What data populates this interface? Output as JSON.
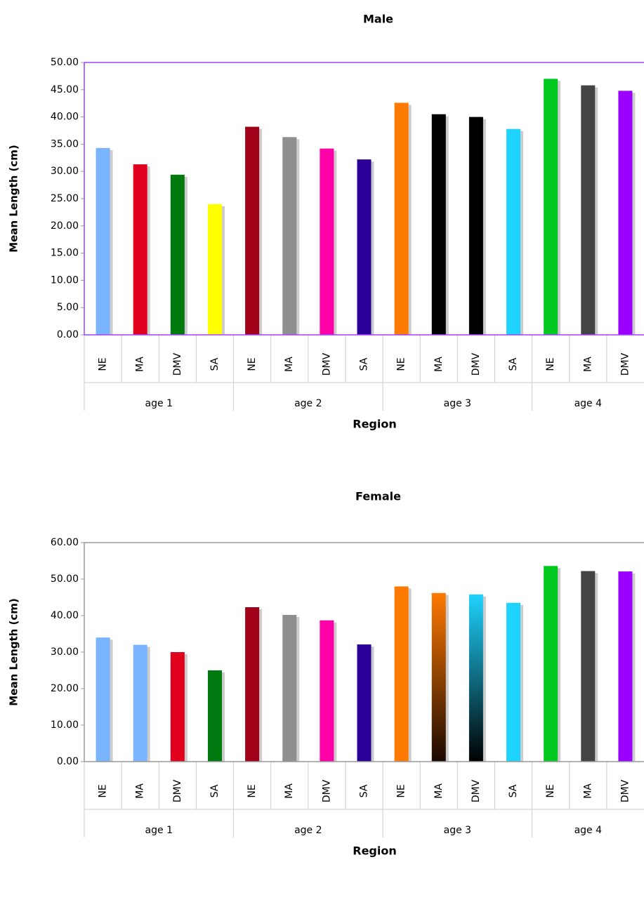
{
  "chart_data": [
    {
      "type": "bar",
      "title": "Male",
      "x_label": "Region",
      "y_label": "Mean Length (cm)",
      "groups": [
        {
          "name": "age 1",
          "categories": [
            "NE",
            "MA",
            "DMV",
            "SA"
          ]
        },
        {
          "name": "age 2",
          "categories": [
            "NE",
            "MA",
            "DMV",
            "SA"
          ]
        },
        {
          "name": "age 3",
          "categories": [
            "NE",
            "MA",
            "DMV",
            "SA"
          ]
        },
        {
          "name": "age 4",
          "categories": [
            "NE",
            "MA",
            "DMV"
          ]
        }
      ],
      "values": [
        34.3,
        31.3,
        29.4,
        24.0,
        38.2,
        36.3,
        34.2,
        32.2,
        42.6,
        40.5,
        40.0,
        37.8,
        47.0,
        45.8,
        44.8
      ],
      "colors": [
        "#7ab4ff",
        "#e0001e",
        "#007a0f",
        "#ffff00",
        "#a00018",
        "#8f8f8f",
        "#ff00a8",
        "#2a0099",
        "#ff7a00",
        "#000000",
        "#000000",
        "#1fd3ff",
        "#00c81e",
        "#444444",
        "#9a00ff"
      ],
      "ylim": [
        0,
        50
      ],
      "yticks": [
        {
          "value": 0,
          "label": "0.00"
        },
        {
          "value": 5,
          "label": "5.00"
        },
        {
          "value": 10,
          "label": "10.00"
        },
        {
          "value": 15,
          "label": "15.00"
        },
        {
          "value": 20,
          "label": "20.00"
        },
        {
          "value": 25,
          "label": "25.00"
        },
        {
          "value": 30,
          "label": "30.00"
        },
        {
          "value": 35,
          "label": "35.00"
        },
        {
          "value": 40,
          "label": "40.00"
        },
        {
          "value": 45,
          "label": "45.00"
        },
        {
          "value": 50,
          "label": "50.00"
        }
      ],
      "frame_color": "#a040ff"
    },
    {
      "type": "bar",
      "title": "Female",
      "x_label": "Region",
      "y_label": "Mean Length (cm)",
      "groups": [
        {
          "name": "age 1",
          "categories": [
            "NE",
            "MA",
            "DMV",
            "SA"
          ]
        },
        {
          "name": "age 2",
          "categories": [
            "NE",
            "MA",
            "DMV",
            "SA"
          ]
        },
        {
          "name": "age 3",
          "categories": [
            "NE",
            "MA",
            "DMV",
            "SA"
          ]
        },
        {
          "name": "age 4",
          "categories": [
            "NE",
            "MA",
            "DMV"
          ]
        }
      ],
      "values": [
        34.0,
        32.0,
        30.0,
        25.0,
        42.3,
        40.2,
        38.7,
        32.1,
        48.0,
        46.2,
        45.8,
        43.5,
        53.6,
        52.2,
        52.1
      ],
      "colors": [
        "#7ab4ff",
        "#7ab4ff",
        "#e0001e",
        "#007a0f",
        "#a00018",
        "#8f8f8f",
        "#ff00a8",
        "#2a0099",
        "#ff7a00",
        [
          "#ff7a00",
          "#1a0800"
        ],
        [
          "#1fd3ff",
          "#000000"
        ],
        "#1fd3ff",
        "#00c81e",
        "#444444",
        "#9a00ff"
      ],
      "ylim": [
        0,
        60
      ],
      "yticks": [
        {
          "value": 0,
          "label": "0.00"
        },
        {
          "value": 10,
          "label": "10.00"
        },
        {
          "value": 20,
          "label": "20.00"
        },
        {
          "value": 30,
          "label": "30.00"
        },
        {
          "value": 40,
          "label": "40.00"
        },
        {
          "value": 50,
          "label": "50.00"
        },
        {
          "value": 60,
          "label": "60.00"
        }
      ],
      "frame_color": "#999999"
    }
  ]
}
